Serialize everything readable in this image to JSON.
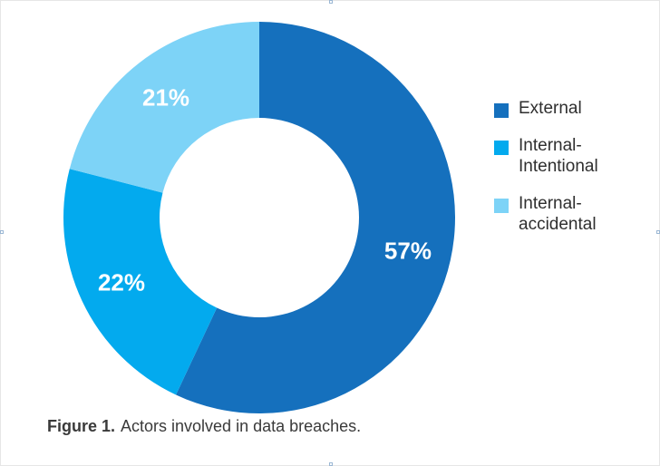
{
  "chart_data": {
    "type": "pie",
    "donut": true,
    "categories": [
      "External",
      "Internal-\nIntentional",
      "Internal-\naccidental"
    ],
    "values": [
      57,
      22,
      21
    ],
    "value_labels": [
      "57%",
      "22%",
      "21%"
    ],
    "colors": [
      "#1570bd",
      "#03aaee",
      "#7dd3f7"
    ],
    "legend_position": "right",
    "caption_prefix": "Figure 1.",
    "caption_text": "Actors involved in data breaches."
  }
}
